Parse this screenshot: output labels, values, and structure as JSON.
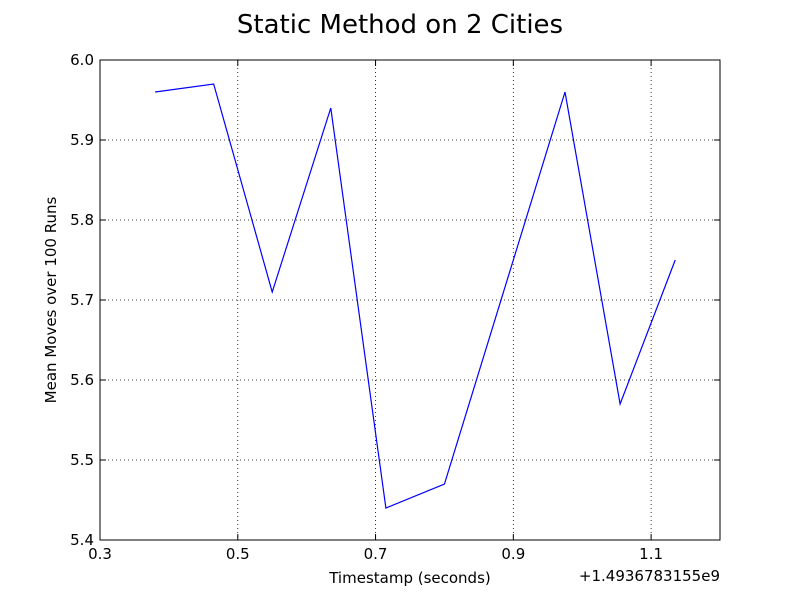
{
  "chart_data": {
    "type": "line",
    "title": "Static Method on 2 Cities",
    "xlabel": "Timestamp (seconds)",
    "ylabel": "Mean Moves over 100 Runs",
    "x_offset_label": "+1.4936783155e9",
    "xlim": [
      0.3,
      1.2
    ],
    "ylim": [
      5.4,
      6.0
    ],
    "x_ticks": [
      0.3,
      0.5,
      0.7,
      0.9,
      1.1
    ],
    "x_tick_labels": [
      "0.3",
      "0.5",
      "0.7",
      "0.9",
      "1.1"
    ],
    "y_ticks": [
      5.4,
      5.5,
      5.6,
      5.7,
      5.8,
      5.9,
      6.0
    ],
    "y_tick_labels": [
      "5.4",
      "5.5",
      "5.6",
      "5.7",
      "5.8",
      "5.9",
      "6.0"
    ],
    "grid": true,
    "series": [
      {
        "color": "#0000ff",
        "x": [
          0.38,
          0.465,
          0.55,
          0.635,
          0.715,
          0.8,
          0.975,
          1.055,
          1.135
        ],
        "y": [
          5.96,
          5.97,
          5.71,
          5.94,
          5.44,
          5.47,
          5.96,
          5.57,
          5.75
        ]
      }
    ]
  }
}
